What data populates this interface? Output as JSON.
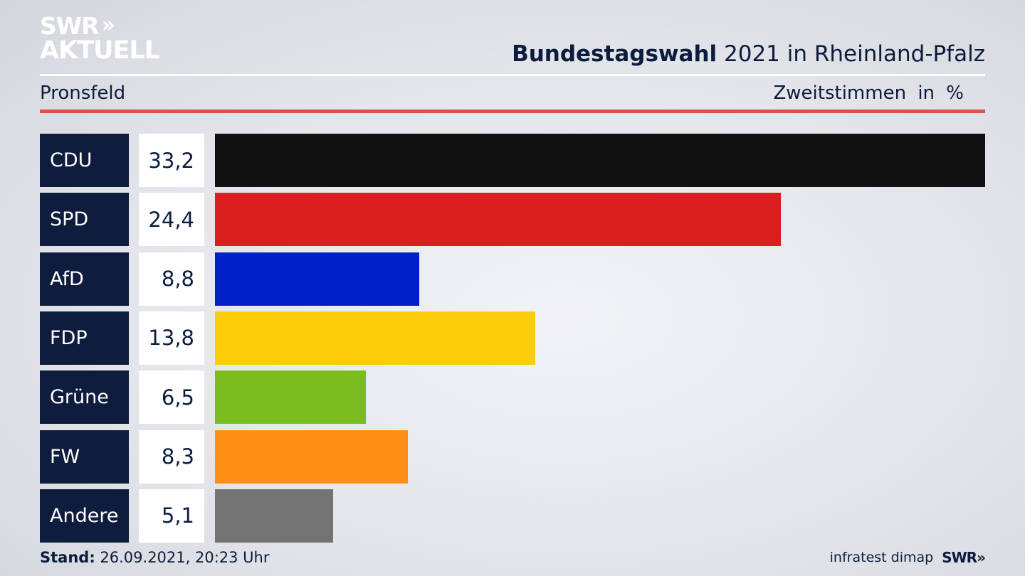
{
  "header": {
    "logo_line1": "SWR",
    "logo_chevrons": "»",
    "logo_line2": "AKTUELL",
    "title_bold": "Bundestagswahl",
    "title_rest": " 2021 in Rheinland-Pfalz",
    "location": "Pronsfeld",
    "unit_label": "Zweitstimmen   in %"
  },
  "chart_data": {
    "type": "bar",
    "orientation": "horizontal",
    "title": "Bundestagswahl 2021 in Rheinland-Pfalz",
    "subtitle": "Pronsfeld",
    "unit": "Zweitstimmen in %",
    "categories": [
      "CDU",
      "SPD",
      "AfD",
      "FDP",
      "Grüne",
      "FW",
      "Andere"
    ],
    "values": [
      33.2,
      24.4,
      8.8,
      13.8,
      6.5,
      8.3,
      5.1
    ],
    "value_labels": [
      "33,2",
      "24,4",
      "8,8",
      "13,8",
      "6,5",
      "8,3",
      "5,1"
    ],
    "colors": [
      "#121212",
      "#d91f1f",
      "#0021c7",
      "#fdcd0c",
      "#7bbd1f",
      "#fd8f17",
      "#737373"
    ],
    "xlim": [
      0,
      33.2
    ],
    "grid": false,
    "legend": "none"
  },
  "footer": {
    "stand_label": "Stand:",
    "stand_value": " 26.09.2021, 20:23 Uhr",
    "source": "infratest dimap",
    "brand": "SWR»"
  }
}
